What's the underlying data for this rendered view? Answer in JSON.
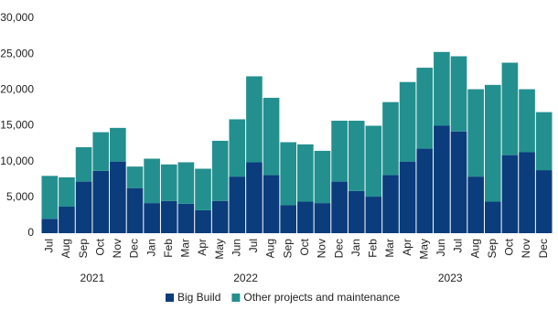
{
  "chart_data": {
    "type": "stacked-bar",
    "categories": [
      "Jul",
      "Aug",
      "Sep",
      "Oct",
      "Nov",
      "Dec",
      "Jan",
      "Feb",
      "Mar",
      "Apr",
      "May",
      "Jun",
      "Jul",
      "Aug",
      "Sep",
      "Oct",
      "Nov",
      "Dec",
      "Jan",
      "Feb",
      "Mar",
      "Apr",
      "May",
      "Jun",
      "Jul",
      "Aug",
      "Sep",
      "Oct",
      "Nov",
      "Dec"
    ],
    "years": [
      "2021",
      "2022",
      "2023"
    ],
    "series": [
      {
        "name": "Big Build",
        "color": "#0b3c7c",
        "values": [
          2000,
          3700,
          7200,
          8700,
          10000,
          6300,
          4200,
          4500,
          4100,
          3200,
          4500,
          7900,
          9900,
          8100,
          3900,
          4400,
          4200,
          7200,
          5900,
          5100,
          8100,
          10000,
          11800,
          15000,
          14200,
          7900,
          4400,
          10900,
          11300,
          8800
        ]
      },
      {
        "name": "Other projects and maintenance",
        "color": "#23908f",
        "values": [
          6000,
          4100,
          4800,
          5400,
          4700,
          3000,
          6200,
          5100,
          5800,
          5800,
          8400,
          8000,
          12000,
          10800,
          8800,
          8000,
          7300,
          8500,
          9800,
          9900,
          10200,
          11100,
          11300,
          10300,
          10500,
          12200,
          16300,
          12900,
          8800,
          8100
        ]
      }
    ],
    "ylim": [
      0,
      30000
    ],
    "yticks": [
      0,
      {
        "value": 5000,
        "label": "5,000"
      },
      {
        "value": 10000,
        "label": "10,000"
      },
      {
        "value": 15000,
        "label": "15,000"
      },
      {
        "value": 20000,
        "label": "20,000"
      },
      {
        "value": 25000,
        "label": "25,000"
      },
      {
        "value": 30000,
        "label": "30,000"
      }
    ],
    "grid": false
  }
}
